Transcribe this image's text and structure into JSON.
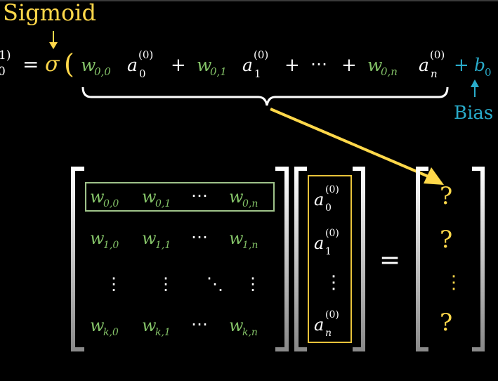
{
  "colors": {
    "background": "#000000",
    "yellow": "#ffd84a",
    "green": "#83c167",
    "blue": "#29abca",
    "white": "#ffffff",
    "frame_green": "#9fc38a",
    "frame_yellow": "#e8c33a"
  },
  "annotations": {
    "sigmoid_label": "Sigmoid",
    "bias_label": "Bias",
    "sigma": "σ",
    "equals": "=",
    "open_paren": "(",
    "plus": "+",
    "dots": "⋯"
  },
  "equation": {
    "lhs_fragment_sup": "1)",
    "lhs_fragment_sub": "0",
    "terms": [
      {
        "w": "w",
        "w_sub": "0,0",
        "a": "a",
        "a_sup": "(0)",
        "a_sub": "0"
      },
      {
        "w": "w",
        "w_sub": "0,1",
        "a": "a",
        "a_sup": "(0)",
        "a_sub": "1"
      },
      {
        "w": "w",
        "w_sub": "0,n",
        "a": "a",
        "a_sup": "(0)",
        "a_sub": "n"
      }
    ],
    "bias": {
      "b": "b",
      "b_sub": "0"
    }
  },
  "weight_matrix": {
    "rows": [
      [
        {
          "w": "w",
          "sub": "0,0"
        },
        {
          "w": "w",
          "sub": "0,1"
        },
        {
          "dots": "⋯"
        },
        {
          "w": "w",
          "sub": "0,n"
        }
      ],
      [
        {
          "w": "w",
          "sub": "1,0"
        },
        {
          "w": "w",
          "sub": "1,1"
        },
        {
          "dots": "⋯"
        },
        {
          "w": "w",
          "sub": "1,n"
        }
      ],
      [
        {
          "dots": "⋮"
        },
        {
          "dots": "⋮"
        },
        {
          "dots": "⋱"
        },
        {
          "dots": "⋮"
        }
      ],
      [
        {
          "w": "w",
          "sub": "k,0"
        },
        {
          "w": "w",
          "sub": "k,1"
        },
        {
          "dots": "⋯"
        },
        {
          "w": "w",
          "sub": "k,n"
        }
      ]
    ]
  },
  "activation_vector": {
    "entries": [
      {
        "a": "a",
        "sup": "(0)",
        "sub": "0"
      },
      {
        "a": "a",
        "sup": "(0)",
        "sub": "1"
      },
      {
        "dots": "⋮"
      },
      {
        "a": "a",
        "sup": "(0)",
        "sub": "n"
      }
    ]
  },
  "result_vector": {
    "entries": [
      "?",
      "?",
      "⋮",
      "?"
    ]
  }
}
